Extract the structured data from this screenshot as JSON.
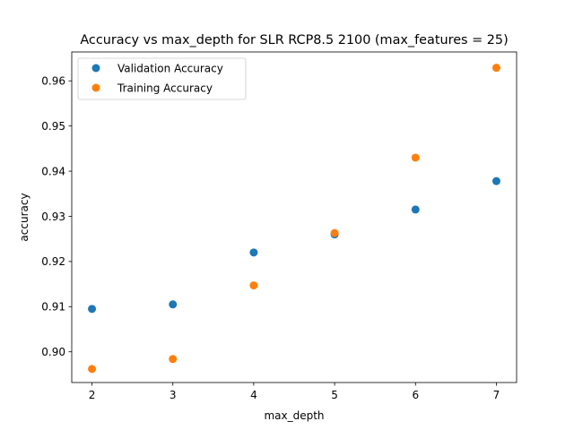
{
  "chart_data": {
    "type": "scatter",
    "title": "Accuracy vs max_depth for SLR RCP8.5 2100 (max_features = 25)",
    "xlabel": "max_depth",
    "ylabel": "accuracy",
    "xlim": [
      1.75,
      7.25
    ],
    "ylim": [
      0.8932,
      0.9664
    ],
    "xticks": [
      2,
      3,
      4,
      5,
      6,
      7
    ],
    "yticks": [
      0.9,
      0.91,
      0.92,
      0.93,
      0.94,
      0.95,
      0.96
    ],
    "xtick_labels": [
      "2",
      "3",
      "4",
      "5",
      "6",
      "7"
    ],
    "ytick_labels": [
      "0.90",
      "0.91",
      "0.92",
      "0.93",
      "0.94",
      "0.95",
      "0.96"
    ],
    "grid": false,
    "legend_position": "top-left",
    "series": [
      {
        "name": "Validation Accuracy",
        "color": "#1f77b4",
        "x": [
          2,
          3,
          4,
          5,
          6,
          7
        ],
        "y": [
          0.9095,
          0.9105,
          0.922,
          0.926,
          0.9315,
          0.9378
        ]
      },
      {
        "name": "Training Accuracy",
        "color": "#ff7f0e",
        "x": [
          2,
          3,
          4,
          5,
          6,
          7
        ],
        "y": [
          0.8962,
          0.8984,
          0.9147,
          0.9263,
          0.943,
          0.9629
        ]
      }
    ]
  }
}
